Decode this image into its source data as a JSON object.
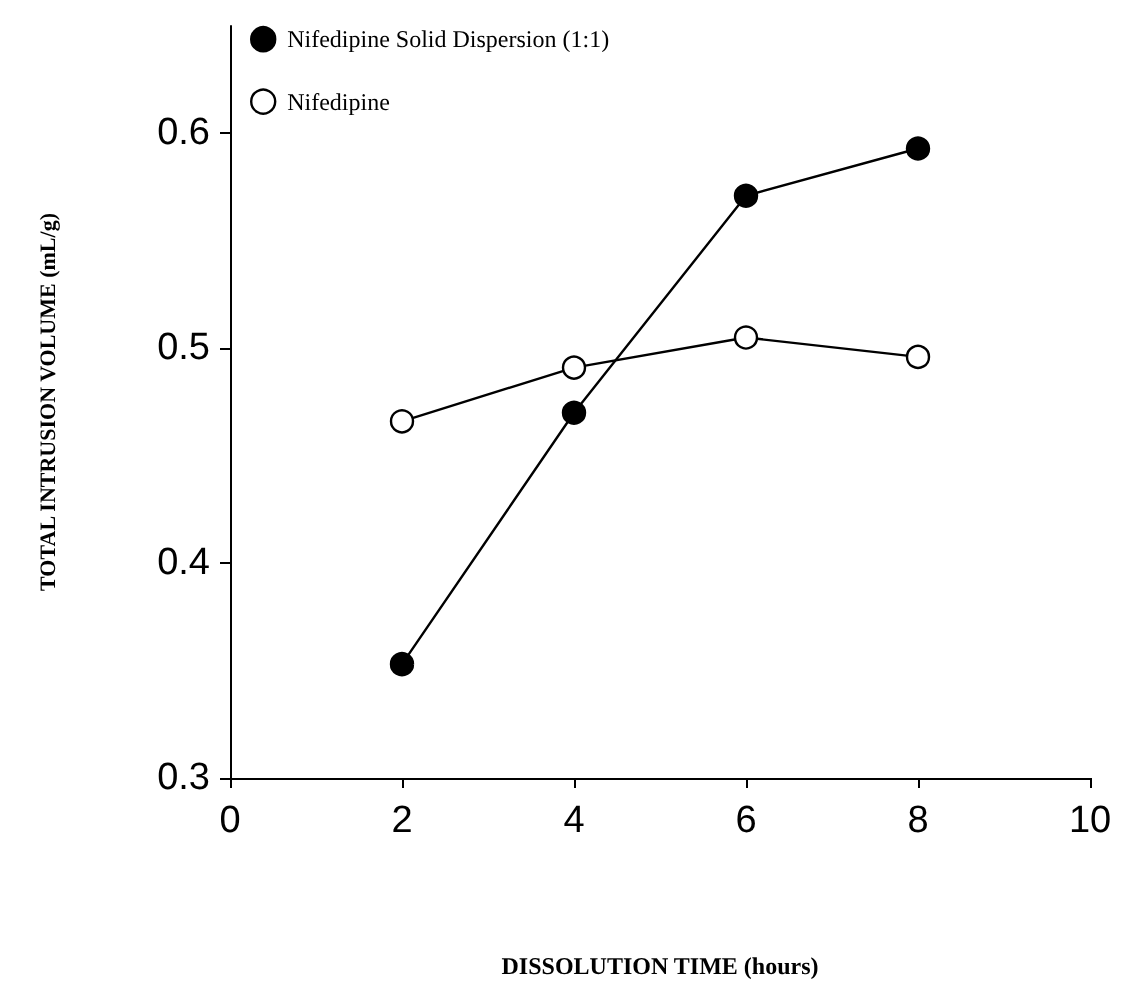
{
  "chart_data": {
    "type": "line",
    "xlabel": "DISSOLUTION TIME (hours)",
    "ylabel": "TOTAL INTRUSION VOLUME (mL/g)",
    "x": [
      2,
      4,
      6,
      8
    ],
    "series": [
      {
        "name": "Nifedipine Solid Dispersion (1:1)",
        "color": "#000000",
        "values": [
          0.353,
          0.47,
          0.571,
          0.593
        ]
      },
      {
        "name": "Nifedipine",
        "color": "#ffffff",
        "values": [
          0.466,
          0.491,
          0.505,
          0.496
        ]
      }
    ],
    "xlim": [
      0,
      10
    ],
    "xticks": [
      0,
      2,
      4,
      6,
      8,
      10
    ],
    "ylim": [
      0.3,
      0.65
    ],
    "yticks": [
      0.3,
      0.4,
      0.5,
      0.6
    ],
    "grid": false,
    "legend": "top left",
    "marker": "circle",
    "line_style": "solid"
  }
}
